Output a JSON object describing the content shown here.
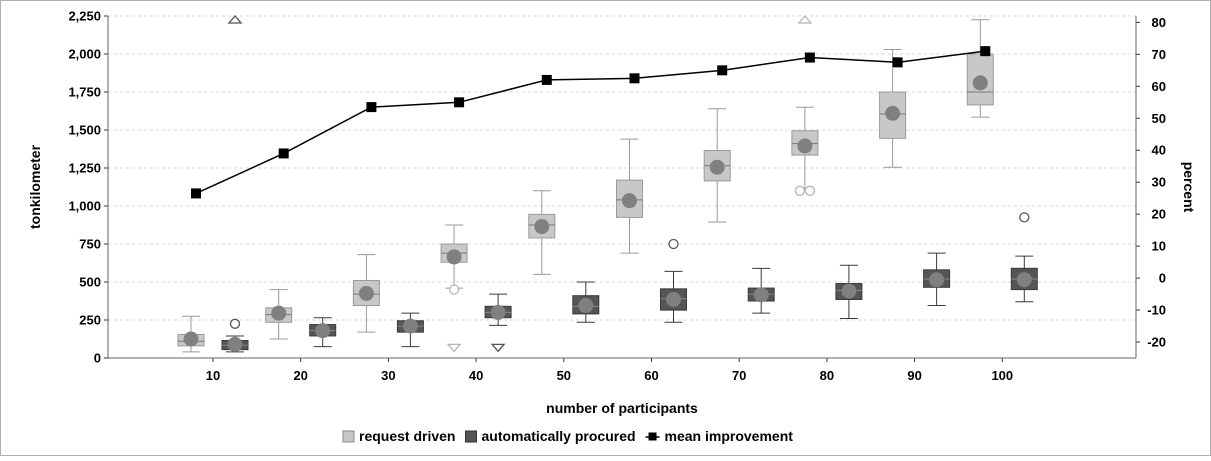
{
  "chart_data": {
    "type": "boxplot",
    "xlabel": "number of participants",
    "ylabel_left": "tonkilometer",
    "ylabel_right": "percent",
    "categories": [
      10,
      20,
      30,
      40,
      50,
      60,
      70,
      80,
      90,
      100
    ],
    "y_left": {
      "lim": [
        0,
        2250
      ],
      "ticks": [
        0,
        250,
        500,
        750,
        1000,
        1250,
        1500,
        1750,
        2000,
        2250
      ],
      "tick_labels": [
        "0",
        "250",
        "500",
        "750",
        "1,000",
        "1,250",
        "1,500",
        "1,750",
        "2,000",
        "2,250"
      ]
    },
    "y_right": {
      "lim": [
        -25,
        82
      ],
      "ticks": [
        -20,
        -10,
        0,
        10,
        20,
        30,
        40,
        50,
        60,
        70,
        80
      ],
      "tick_labels": [
        "-20",
        "-10",
        "0",
        "10",
        "20",
        "30",
        "40",
        "50",
        "60",
        "70",
        "80"
      ]
    },
    "grid": true,
    "legend_position": "bottom",
    "series": [
      {
        "name": "request driven",
        "kind": "box",
        "color": "#c8c8c8",
        "boxes": [
          {
            "min": 40,
            "q1": 80,
            "median": 110,
            "q3": 155,
            "max": 275,
            "mean": 125
          },
          {
            "min": 125,
            "q1": 235,
            "median": 285,
            "q3": 330,
            "max": 450,
            "mean": 295
          },
          {
            "min": 170,
            "q1": 345,
            "median": 420,
            "q3": 510,
            "max": 680,
            "mean": 425
          },
          {
            "min": 460,
            "q1": 630,
            "median": 690,
            "q3": 750,
            "max": 875,
            "mean": 665
          },
          {
            "min": 550,
            "q1": 790,
            "median": 875,
            "q3": 945,
            "max": 1100,
            "mean": 865
          },
          {
            "min": 690,
            "q1": 925,
            "median": 1040,
            "q3": 1170,
            "max": 1440,
            "mean": 1035
          },
          {
            "min": 895,
            "q1": 1165,
            "median": 1265,
            "q3": 1365,
            "max": 1640,
            "mean": 1255
          },
          {
            "min": 1100,
            "q1": 1335,
            "median": 1410,
            "q3": 1495,
            "max": 1650,
            "mean": 1395
          },
          {
            "min": 1255,
            "q1": 1445,
            "median": 1605,
            "q3": 1750,
            "max": 2030,
            "mean": 1610
          },
          {
            "min": 1585,
            "q1": 1665,
            "median": 1750,
            "q3": 2000,
            "max": 2225,
            "mean": 1810
          }
        ],
        "outliers": [
          {
            "category": 40,
            "value": 450,
            "marker": "circle"
          },
          {
            "category": 40,
            "value": 70,
            "marker": "triangle-down"
          },
          {
            "category": 80,
            "value": 1100,
            "marker": "circle"
          },
          {
            "category": 80,
            "value": 1100,
            "marker": "circle"
          },
          {
            "category": 80,
            "value": 2250,
            "marker": "triangle-up"
          }
        ]
      },
      {
        "name": "automatically procured",
        "kind": "box",
        "color": "#555555",
        "boxes": [
          {
            "min": 40,
            "q1": 55,
            "median": 85,
            "q3": 115,
            "max": 145,
            "mean": 90
          },
          {
            "min": 75,
            "q1": 145,
            "median": 180,
            "q3": 220,
            "max": 265,
            "mean": 180
          },
          {
            "min": 75,
            "q1": 170,
            "median": 210,
            "q3": 245,
            "max": 295,
            "mean": 210
          },
          {
            "min": 215,
            "q1": 265,
            "median": 300,
            "q3": 340,
            "max": 420,
            "mean": 300
          },
          {
            "min": 235,
            "q1": 290,
            "median": 340,
            "q3": 410,
            "max": 500,
            "mean": 345
          },
          {
            "min": 235,
            "q1": 315,
            "median": 390,
            "q3": 455,
            "max": 570,
            "mean": 385
          },
          {
            "min": 295,
            "q1": 375,
            "median": 420,
            "q3": 460,
            "max": 590,
            "mean": 415
          },
          {
            "min": 260,
            "q1": 385,
            "median": 445,
            "q3": 490,
            "max": 610,
            "mean": 440
          },
          {
            "min": 345,
            "q1": 465,
            "median": 520,
            "q3": 580,
            "max": 690,
            "mean": 515
          },
          {
            "min": 370,
            "q1": 450,
            "median": 520,
            "q3": 590,
            "max": 670,
            "mean": 515
          }
        ],
        "outliers": [
          {
            "category": 10,
            "value": 225,
            "marker": "circle"
          },
          {
            "category": 10,
            "value": 2250,
            "marker": "triangle-up"
          },
          {
            "category": 40,
            "value": 70,
            "marker": "triangle-down"
          },
          {
            "category": 60,
            "value": 750,
            "marker": "circle"
          },
          {
            "category": 100,
            "value": 925,
            "marker": "circle"
          }
        ]
      },
      {
        "name": "mean improvement",
        "kind": "line",
        "axis": "right",
        "color": "#000000",
        "x": [
          10,
          20,
          30,
          40,
          50,
          60,
          70,
          80,
          90,
          100
        ],
        "values": [
          26.5,
          39,
          53.5,
          55,
          62,
          62.5,
          65,
          69,
          67.5,
          71
        ]
      }
    ]
  }
}
